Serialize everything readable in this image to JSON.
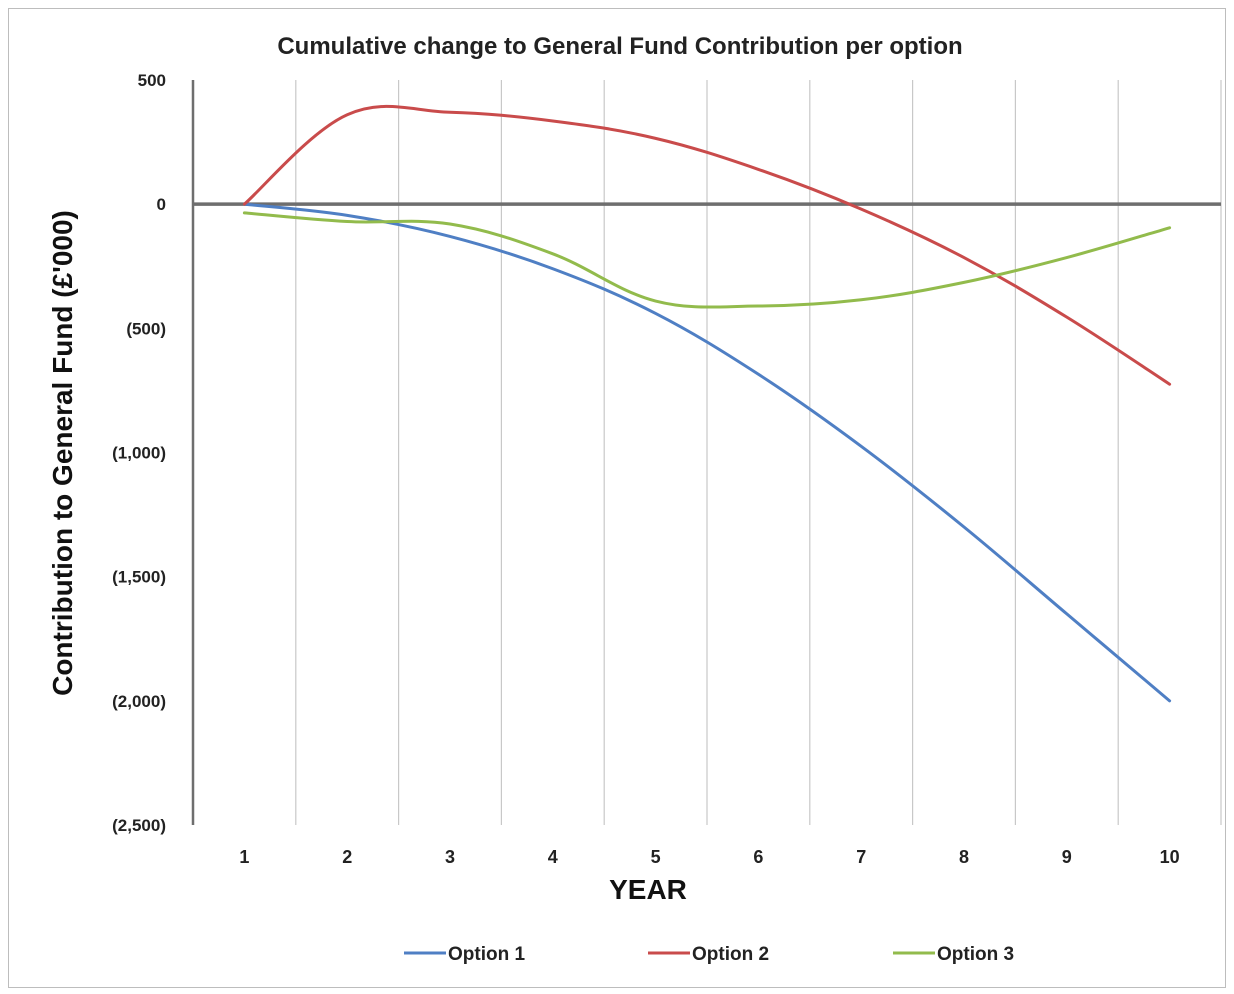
{
  "chart_data": {
    "type": "line",
    "title": "Cumulative change to General Fund Contribution per option",
    "xlabel": "YEAR",
    "ylabel": "Contribution to General Fund (£'000)",
    "categories": [
      "1",
      "2",
      "3",
      "4",
      "5",
      "6",
      "7",
      "8",
      "9",
      "10"
    ],
    "ylim": [
      -2500,
      500
    ],
    "yticks": [
      500,
      0,
      -500,
      -1000,
      -1500,
      -2000,
      -2500
    ],
    "ytick_labels": [
      "500",
      "0",
      "(500)",
      "(1,000)",
      "(1,500)",
      "(2,000)",
      "(2,500)"
    ],
    "grid": "vertical",
    "legend_position": "bottom",
    "series": [
      {
        "name": "Option 1",
        "color": "#4f7fc4",
        "values": [
          0,
          -45,
          -130,
          -260,
          -440,
          -685,
          -975,
          -1300,
          -1650,
          -2000
        ]
      },
      {
        "name": "Option 2",
        "color": "#c94b4b",
        "values": [
          0,
          360,
          370,
          335,
          265,
          140,
          -20,
          -215,
          -455,
          -725
        ]
      },
      {
        "name": "Option 3",
        "color": "#92bb4c",
        "values": [
          -35,
          -70,
          -80,
          -200,
          -390,
          -410,
          -385,
          -315,
          -215,
          -95
        ]
      }
    ]
  }
}
